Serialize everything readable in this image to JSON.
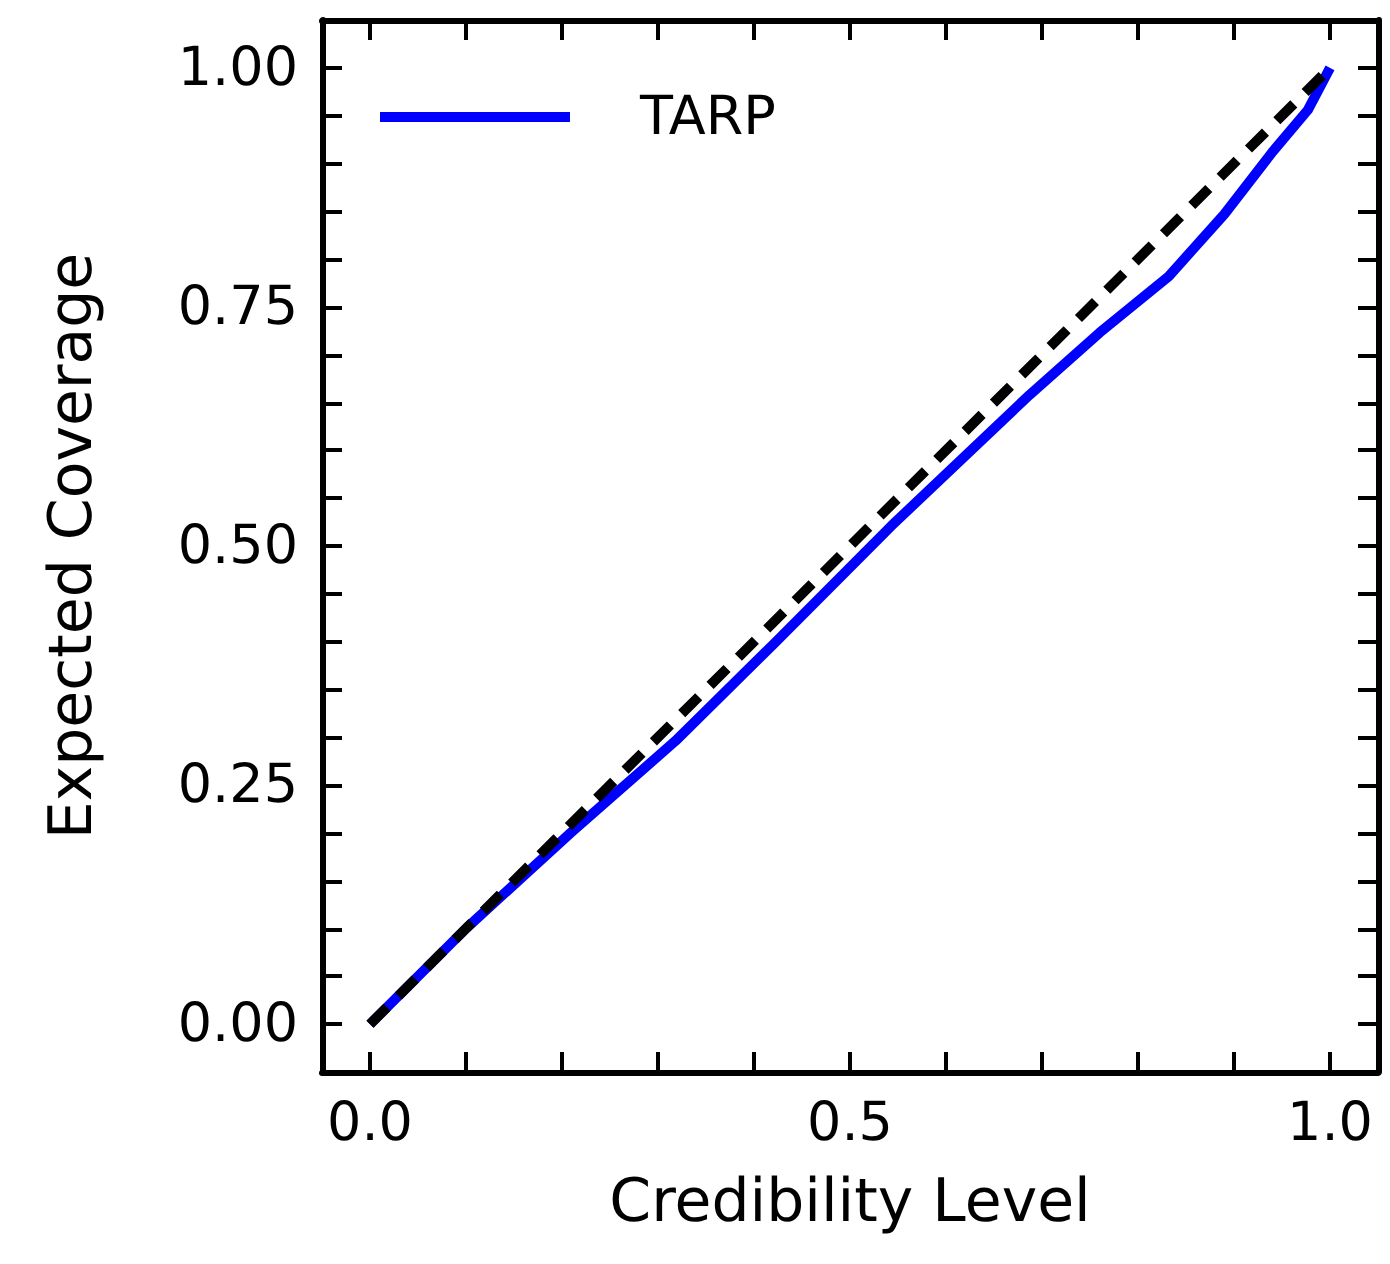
{
  "chart_data": {
    "type": "line",
    "xlabel": "Credibility Level",
    "ylabel": "Expected Coverage",
    "xlim": [
      -0.05,
      1.05
    ],
    "ylim": [
      -0.05,
      1.05
    ],
    "xticks": [
      {
        "value": 0,
        "label": "0.0"
      },
      {
        "value": 0.1,
        "label": null
      },
      {
        "value": 0.2,
        "label": null
      },
      {
        "value": 0.3,
        "label": null
      },
      {
        "value": 0.4,
        "label": null
      },
      {
        "value": 0.5,
        "label": "0.5"
      },
      {
        "value": 0.6,
        "label": null
      },
      {
        "value": 0.7,
        "label": null
      },
      {
        "value": 0.8,
        "label": null
      },
      {
        "value": 0.9,
        "label": null
      },
      {
        "value": 1,
        "label": "1.0"
      }
    ],
    "yticks": [
      {
        "value": 0,
        "label": "0.00"
      },
      {
        "value": 0.05,
        "label": null
      },
      {
        "value": 0.1,
        "label": null
      },
      {
        "value": 0.15,
        "label": null
      },
      {
        "value": 0.2,
        "label": null
      },
      {
        "value": 0.25,
        "label": "0.25"
      },
      {
        "value": 0.3,
        "label": null
      },
      {
        "value": 0.35,
        "label": null
      },
      {
        "value": 0.4,
        "label": null
      },
      {
        "value": 0.45,
        "label": null
      },
      {
        "value": 0.5,
        "label": "0.50"
      },
      {
        "value": 0.55,
        "label": null
      },
      {
        "value": 0.6,
        "label": null
      },
      {
        "value": 0.65,
        "label": null
      },
      {
        "value": 0.7,
        "label": null
      },
      {
        "value": 0.75,
        "label": "0.75"
      },
      {
        "value": 0.8,
        "label": null
      },
      {
        "value": 0.85,
        "label": null
      },
      {
        "value": 0.9,
        "label": null
      },
      {
        "value": 0.95,
        "label": null
      },
      {
        "value": 1,
        "label": "1.00"
      }
    ],
    "grid": false,
    "legend": "top left",
    "marker": "none",
    "series": [
      {
        "name": "TARP",
        "color": "#0000ff",
        "line_style": "solid",
        "x": [
          0,
          0.1,
          0.21,
          0.318,
          0.42,
          0.543,
          0.687,
          0.76,
          0.832,
          0.89,
          0.94,
          0.977,
          1
        ],
        "values": [
          0,
          0.1,
          0.201,
          0.296,
          0.397,
          0.521,
          0.658,
          0.723,
          0.782,
          0.847,
          0.912,
          0.956,
          1
        ]
      },
      {
        "color": "#000000",
        "line_style": "dashed",
        "x": [
          0,
          1
        ],
        "values": [
          0,
          1
        ]
      }
    ]
  }
}
